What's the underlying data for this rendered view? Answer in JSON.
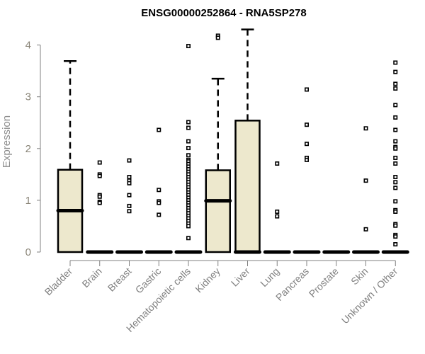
{
  "chart_data": {
    "type": "boxplot",
    "title": "ENSG00000252864 - RNA5SP278",
    "xlabel": "",
    "ylabel": "Expression",
    "ylim": [
      0,
      4.3
    ],
    "yticks": [
      "0",
      "1",
      "2",
      "3",
      "4"
    ],
    "grid": false,
    "box_color": "#ede8cd",
    "categories": [
      "Bladder",
      "Brain",
      "Breast",
      "Gastric",
      "Hematopoietic cells",
      "Kidney",
      "Liver",
      "Lung",
      "Pancreas",
      "Prostate",
      "Skin",
      "Unknown / Other"
    ],
    "boxes": [
      {
        "min": 0,
        "q1": 0,
        "median": 0.8,
        "q3": 1.59,
        "max": 3.69,
        "outliers": []
      },
      {
        "min": 0,
        "q1": 0,
        "median": 0,
        "q3": 0,
        "max": 0,
        "outliers": [
          1.73,
          1.5,
          1.47,
          1.1,
          1.07,
          0.97,
          0.95
        ]
      },
      {
        "min": 0,
        "q1": 0,
        "median": 0,
        "q3": 0,
        "max": 0,
        "outliers": [
          1.77,
          1.45,
          1.38,
          1.33,
          1.1,
          0.89,
          0.79
        ]
      },
      {
        "min": 0,
        "q1": 0,
        "median": 0,
        "q3": 0,
        "max": 0,
        "outliers": [
          2.36,
          1.2,
          0.98,
          0.95,
          0.72
        ]
      },
      {
        "min": 0,
        "q1": 0,
        "median": 0,
        "q3": 0,
        "max": 0,
        "outliers": [
          3.98,
          2.51,
          2.4,
          2.14,
          2.01,
          1.87,
          1.78,
          1.75,
          1.7,
          1.65,
          1.6,
          1.55,
          1.5,
          1.45,
          1.4,
          1.35,
          1.3,
          1.25,
          1.2,
          1.15,
          1.1,
          1.05,
          1.0,
          0.95,
          0.9,
          0.85,
          0.8,
          0.75,
          0.7,
          0.65,
          0.6,
          0.55,
          0.5,
          0.27
        ]
      },
      {
        "min": 0,
        "q1": 0,
        "median": 0.99,
        "q3": 1.58,
        "max": 3.35,
        "outliers": [
          4.18,
          4.14
        ]
      },
      {
        "min": 0,
        "q1": 0,
        "median": 0,
        "q3": 2.54,
        "max": 4.3,
        "outliers": []
      },
      {
        "min": 0,
        "q1": 0,
        "median": 0,
        "q3": 0,
        "max": 0,
        "outliers": [
          1.71,
          0.78,
          0.69
        ]
      },
      {
        "min": 0,
        "q1": 0,
        "median": 0,
        "q3": 0,
        "max": 0,
        "outliers": [
          3.14,
          2.46,
          2.09,
          1.82,
          1.78
        ]
      },
      {
        "min": 0,
        "q1": 0,
        "median": 0,
        "q3": 0,
        "max": 0,
        "outliers": []
      },
      {
        "min": 0,
        "q1": 0,
        "median": 0,
        "q3": 0,
        "max": 0,
        "outliers": [
          2.39,
          1.38,
          0.44
        ]
      },
      {
        "min": 0,
        "q1": 0,
        "median": 0,
        "q3": 0,
        "max": 0,
        "outliers": [
          3.66,
          3.48,
          3.25,
          3.16,
          2.84,
          2.6,
          2.36,
          2.14,
          2.03,
          2.0,
          1.82,
          1.71,
          1.45,
          1.35,
          1.24,
          0.98,
          0.81,
          0.78,
          0.54,
          0.51,
          0.33,
          0.3,
          0.15
        ]
      }
    ]
  }
}
